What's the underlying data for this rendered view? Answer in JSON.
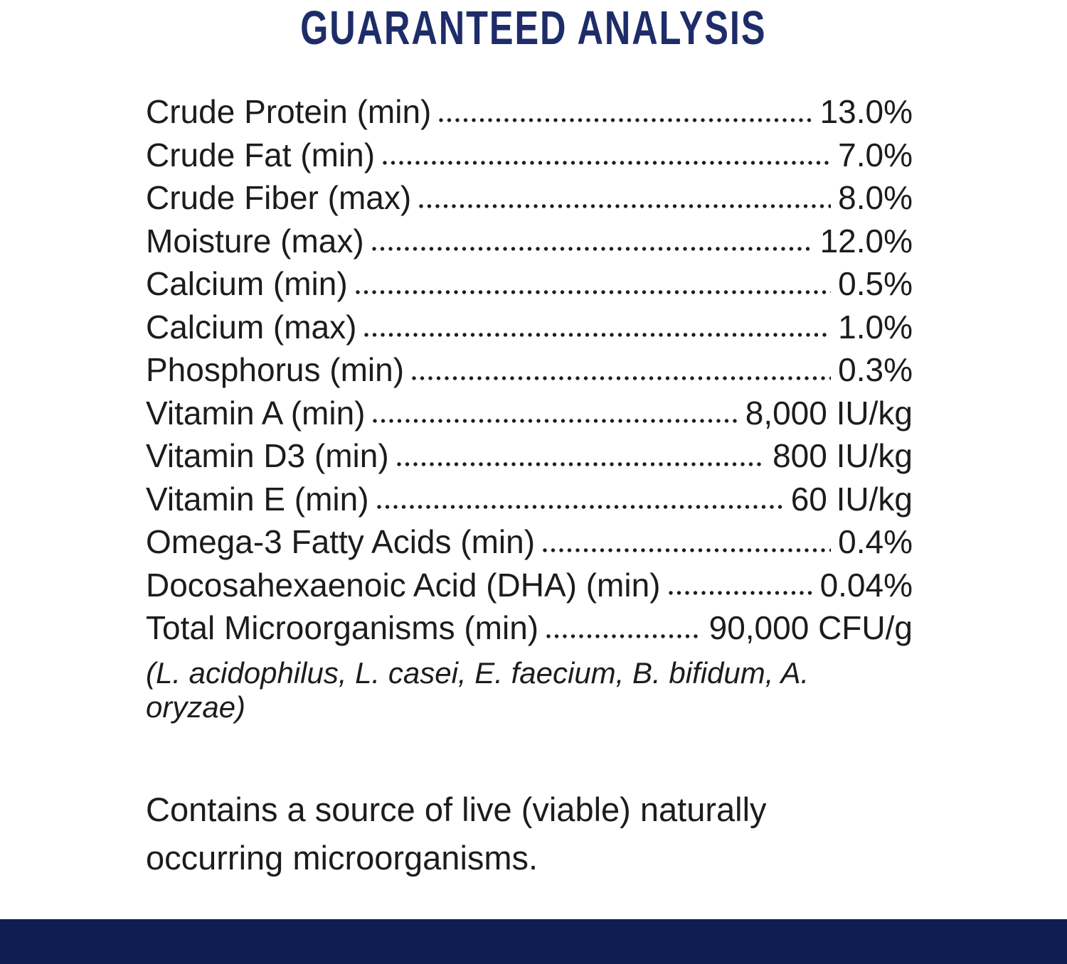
{
  "title": "GUARANTEED ANALYSIS",
  "colors": {
    "title_navy": "#1e2d69",
    "footer_bar_navy": "#0e1e55",
    "body_text": "#1c1c1c"
  },
  "analysis_rows": [
    {
      "label": "Crude Protein (min)",
      "value": "13.0%"
    },
    {
      "label": "Crude Fat (min)",
      "value": "7.0%"
    },
    {
      "label": "Crude Fiber (max)",
      "value": "8.0%"
    },
    {
      "label": "Moisture (max)",
      "value": "12.0%"
    },
    {
      "label": "Calcium (min)",
      "value": "0.5%"
    },
    {
      "label": "Calcium (max)",
      "value": "1.0%"
    },
    {
      "label": "Phosphorus (min)",
      "value": "0.3%"
    },
    {
      "label": "Vitamin A (min)",
      "value": "8,000 IU/kg"
    },
    {
      "label": "Vitamin D3 (min)",
      "value": "800 IU/kg"
    },
    {
      "label": "Vitamin E (min)",
      "value": "60 IU/kg"
    },
    {
      "label": "Omega-3 Fatty Acids (min)",
      "value": "0.4%"
    },
    {
      "label": "Docosahexaenoic Acid (DHA) (min)",
      "value": "0.04%"
    },
    {
      "label": "Total Microorganisms (min)",
      "value": "90,000 CFU/g"
    }
  ],
  "species_note": "(L. acidophilus, L. casei, E. faecium, B. bifidum, A. oryzae)",
  "footnote": "Contains a source of live (viable) naturally occurring microorganisms."
}
